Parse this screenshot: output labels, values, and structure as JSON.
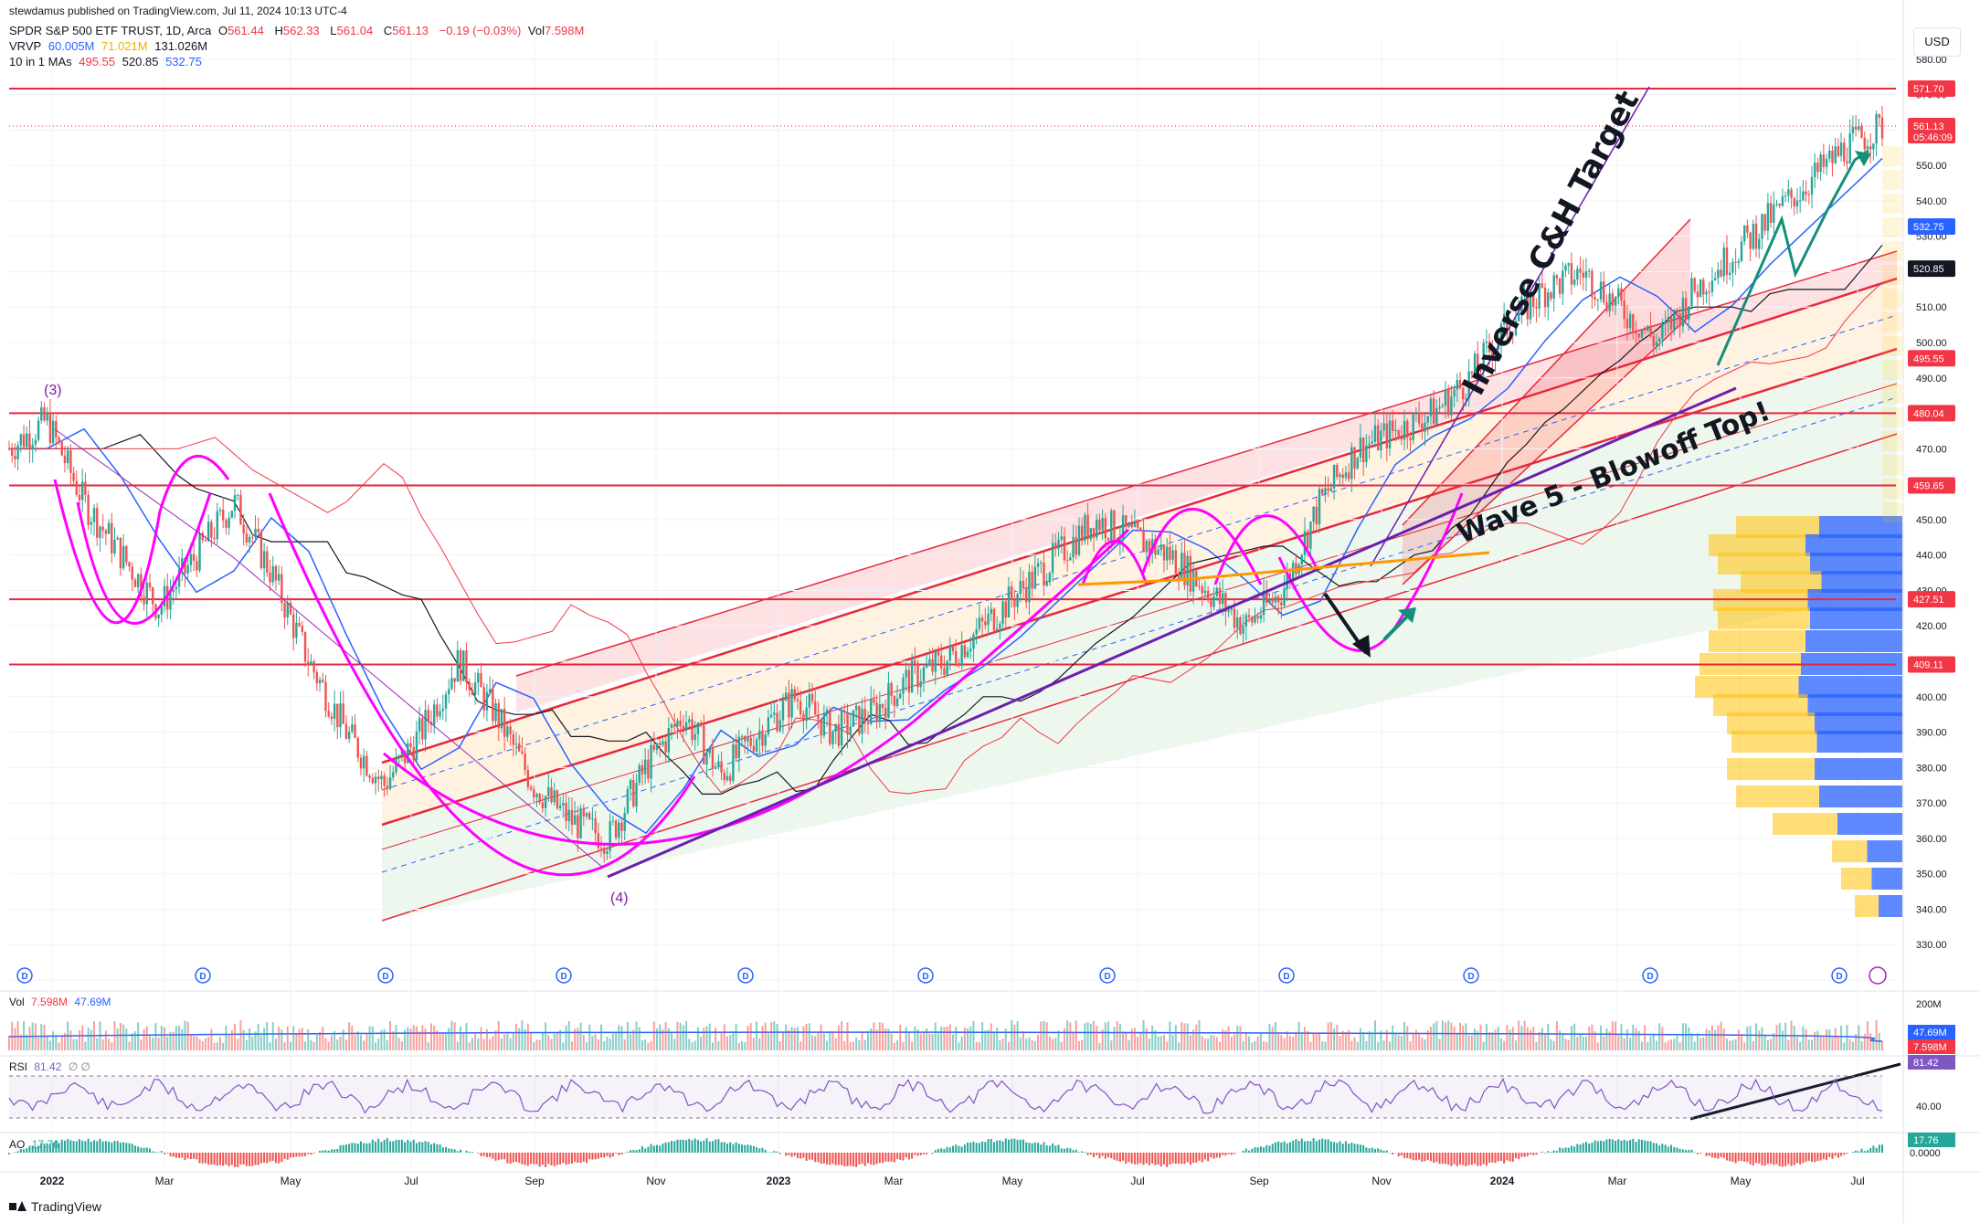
{
  "header": {
    "published": "stewdamus published on TradingView.com, Jul 11, 2024 10:13 UTC-4",
    "symbol": "SPDR S&P 500 ETF TRUST, 1D, Arca",
    "ohlc": {
      "o": "561.44",
      "h": "562.33",
      "l": "561.04",
      "c": "561.13",
      "chg": "−0.19 (−0.03%)",
      "vol": "7.598M"
    },
    "vrvp": {
      "label": "VRVP",
      "v1": "60.005M",
      "v2": "71.021M",
      "v3": "131.026M"
    },
    "mas": {
      "label": "10 in 1 MAs",
      "v1": "495.55",
      "v2": "520.85",
      "v3": "532.75"
    }
  },
  "currency": "USD",
  "footer": {
    "brand": "TradingView"
  },
  "colors": {
    "up": "#26a69a",
    "down": "#ef5350",
    "magenta": "#ff00ff",
    "purple": "#6a1fb0",
    "hline": "#e8283c",
    "orange": "#ff9800"
  },
  "chart_data": {
    "type": "candlestick",
    "price_axis": {
      "min": 320,
      "max": 580,
      "ticks": [
        320,
        330,
        340,
        350,
        360,
        370,
        380,
        390,
        400,
        410,
        420,
        430,
        440,
        450,
        460,
        470,
        480,
        490,
        500,
        510,
        520,
        530,
        540,
        550,
        560,
        570,
        580
      ]
    },
    "time_axis": [
      "2022",
      "Mar",
      "May",
      "Jul",
      "Sep",
      "Nov",
      "2023",
      "Mar",
      "May",
      "Jul",
      "Sep",
      "Nov",
      "2024",
      "Mar",
      "May",
      "Jul"
    ],
    "close_path": [
      [
        0,
        470
      ],
      [
        0.02,
        478
      ],
      [
        0.04,
        455
      ],
      [
        0.06,
        440
      ],
      [
        0.08,
        425
      ],
      [
        0.1,
        440
      ],
      [
        0.12,
        455
      ],
      [
        0.14,
        435
      ],
      [
        0.16,
        410
      ],
      [
        0.18,
        390
      ],
      [
        0.2,
        375
      ],
      [
        0.22,
        390
      ],
      [
        0.24,
        410
      ],
      [
        0.26,
        395
      ],
      [
        0.28,
        375
      ],
      [
        0.3,
        365
      ],
      [
        0.32,
        360
      ],
      [
        0.34,
        380
      ],
      [
        0.36,
        395
      ],
      [
        0.38,
        378
      ],
      [
        0.4,
        390
      ],
      [
        0.42,
        400
      ],
      [
        0.44,
        390
      ],
      [
        0.46,
        395
      ],
      [
        0.48,
        405
      ],
      [
        0.5,
        410
      ],
      [
        0.52,
        420
      ],
      [
        0.54,
        430
      ],
      [
        0.56,
        440
      ],
      [
        0.58,
        450
      ],
      [
        0.6,
        445
      ],
      [
        0.62,
        440
      ],
      [
        0.64,
        430
      ],
      [
        0.66,
        420
      ],
      [
        0.68,
        430
      ],
      [
        0.7,
        455
      ],
      [
        0.72,
        470
      ],
      [
        0.74,
        475
      ],
      [
        0.76,
        480
      ],
      [
        0.78,
        490
      ],
      [
        0.8,
        505
      ],
      [
        0.82,
        515
      ],
      [
        0.84,
        520
      ],
      [
        0.86,
        510
      ],
      [
        0.88,
        500
      ],
      [
        0.9,
        515
      ],
      [
        0.92,
        525
      ],
      [
        0.94,
        535
      ],
      [
        0.96,
        545
      ],
      [
        0.98,
        555
      ],
      [
        1,
        561
      ]
    ],
    "horizontal_levels": [
      571.7,
      561.13,
      480.04,
      459.65,
      427.51,
      409.11
    ],
    "price_labels": [
      {
        "value": 571.7,
        "text": "571.70",
        "color": "#f23645"
      },
      {
        "value": 561.13,
        "text": "561.13",
        "sub": "05:46:09",
        "color": "#f23645"
      },
      {
        "value": 532.75,
        "text": "532.75",
        "color": "#2962ff"
      },
      {
        "value": 520.85,
        "text": "520.85",
        "color": "#131722"
      },
      {
        "value": 495.55,
        "text": "495.55",
        "color": "#f23645"
      },
      {
        "value": 480.04,
        "text": "480.04",
        "color": "#f23645"
      },
      {
        "value": 459.65,
        "text": "459.65",
        "color": "#f23645"
      },
      {
        "value": 427.51,
        "text": "427.51",
        "color": "#f23645"
      },
      {
        "value": 409.11,
        "text": "409.11",
        "color": "#f23645"
      }
    ],
    "annotations": [
      {
        "text": "Inverse C&H Target",
        "kind": "label"
      },
      {
        "text": "Wave 5 - Blowoff Top!",
        "kind": "label"
      },
      {
        "text": "(3)",
        "kind": "wave"
      },
      {
        "text": "(4)",
        "kind": "wave"
      }
    ],
    "volume_pane": {
      "label": "Vol",
      "v1": "7.598M",
      "v2": "47.69M",
      "ticks": [
        "200M"
      ],
      "tags": [
        "47.69M",
        "7.598M"
      ]
    },
    "rsi_pane": {
      "label": "RSI",
      "value": "81.42",
      "symbols": "∅ ∅",
      "ticks": [
        "40.00"
      ],
      "tag": "81.42"
    },
    "ao_pane": {
      "label": "AO",
      "value": "17.76",
      "ticks": [
        "0.0000"
      ],
      "tag": "17.76"
    },
    "dividend_marker": "D"
  }
}
